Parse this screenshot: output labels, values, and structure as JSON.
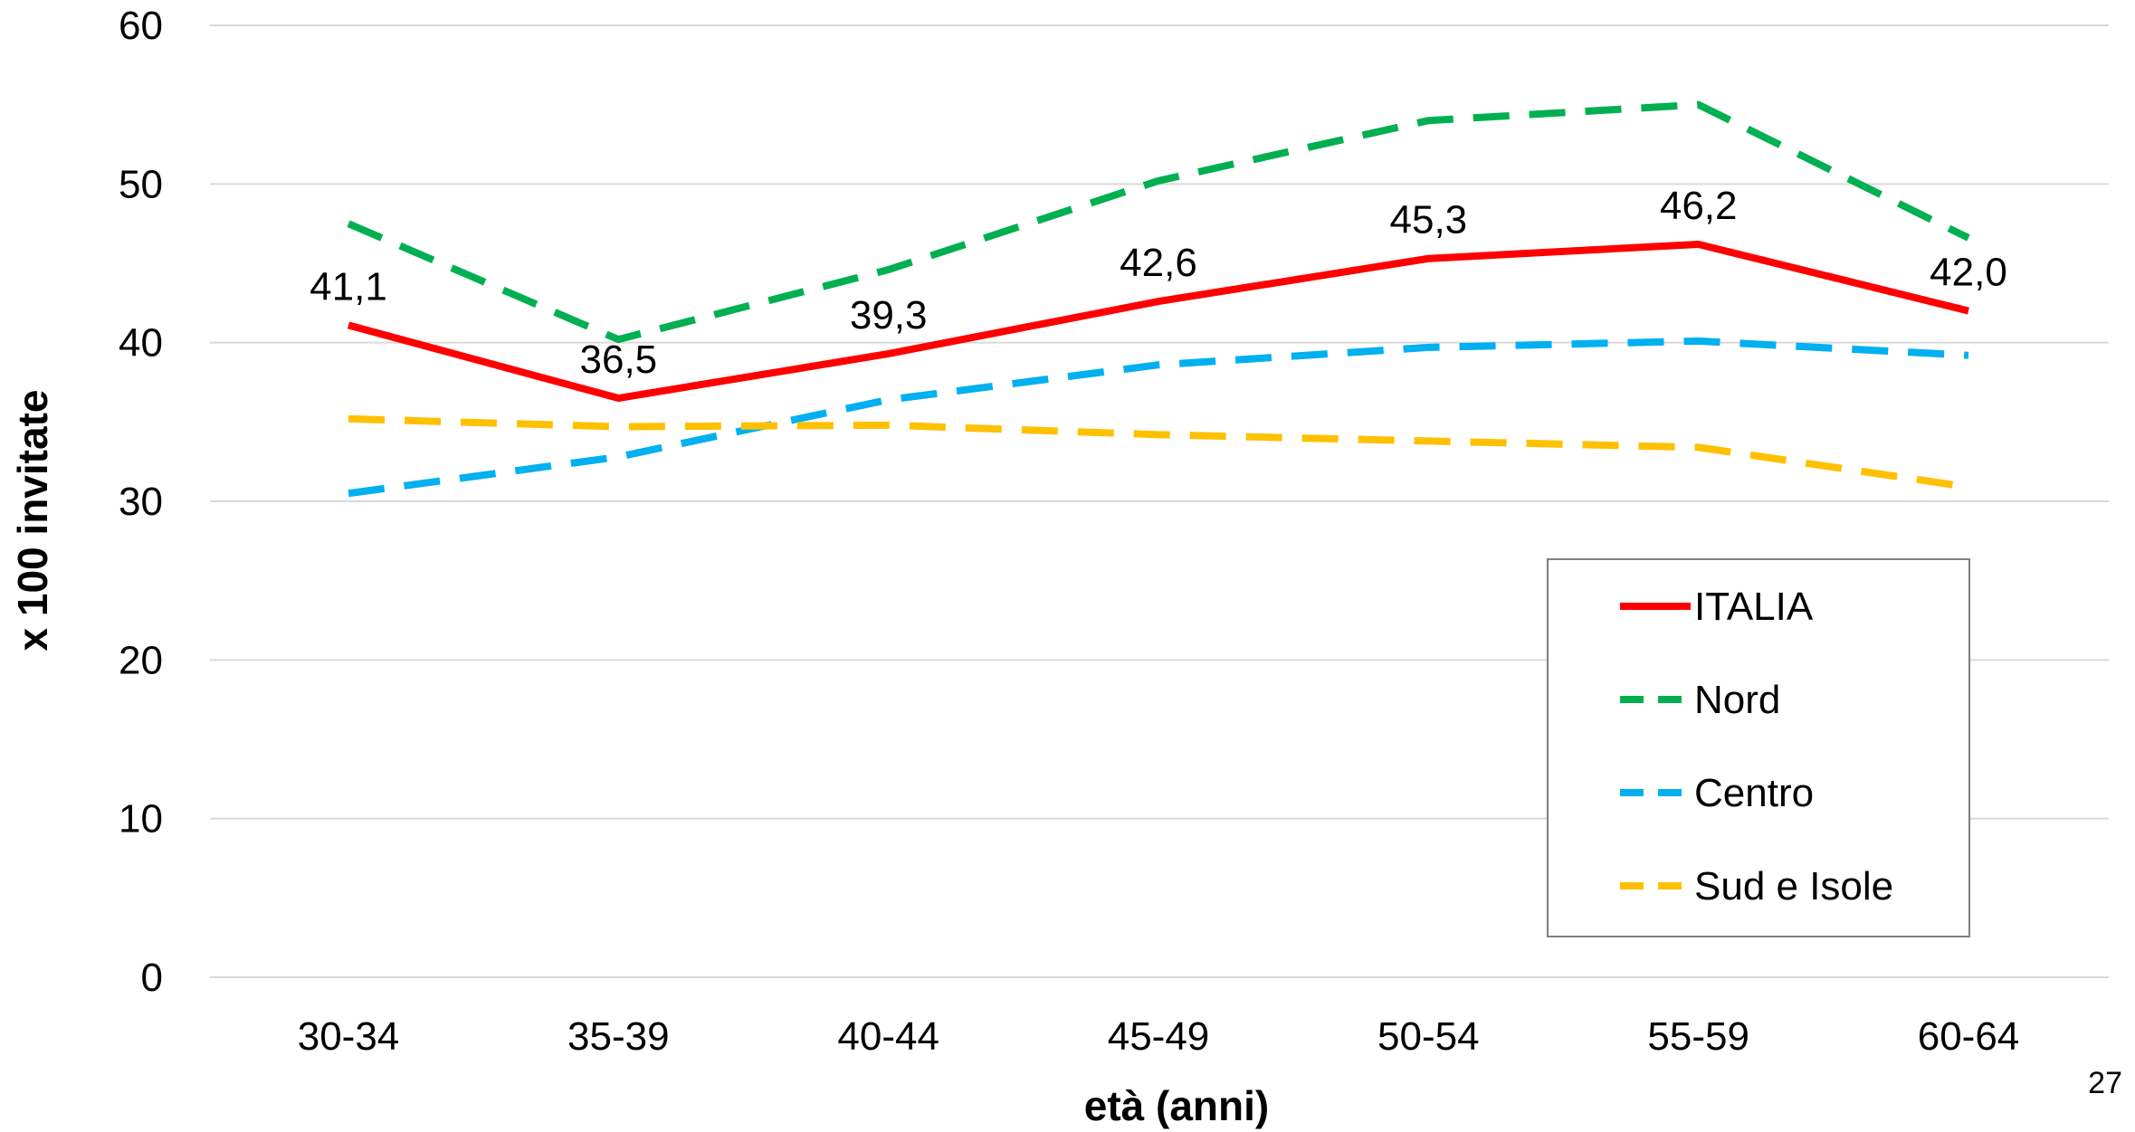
{
  "chart_data": {
    "type": "line",
    "categories": [
      "30-34",
      "35-39",
      "40-44",
      "45-49",
      "50-54",
      "55-59",
      "60-64"
    ],
    "series": [
      {
        "name": "ITALIA",
        "values": [
          41.1,
          36.5,
          39.3,
          42.6,
          45.3,
          46.2,
          42.0
        ],
        "color": "#ff0000",
        "dash": "solid",
        "data_labels": [
          "41,1",
          "36,5",
          "39,3",
          "42,6",
          "45,3",
          "46,2",
          "42,0"
        ]
      },
      {
        "name": "Nord",
        "values": [
          47.5,
          40.2,
          44.6,
          50.2,
          54.0,
          55.0,
          46.6
        ],
        "color": "#00b050",
        "dash": "dashed"
      },
      {
        "name": "Centro",
        "values": [
          30.5,
          32.8,
          36.4,
          38.6,
          39.7,
          40.1,
          39.2
        ],
        "color": "#00b0f0",
        "dash": "dashed"
      },
      {
        "name": "Sud e Isole",
        "values": [
          35.2,
          34.7,
          34.8,
          34.2,
          33.8,
          33.4,
          30.9
        ],
        "color": "#ffc000",
        "dash": "dashed"
      }
    ],
    "xlabel": "età (anni)",
    "ylabel": "x 100 invitate",
    "ylim": [
      0,
      60
    ],
    "yticks": [
      "0",
      "10",
      "20",
      "30",
      "40",
      "50",
      "60"
    ],
    "grid": true,
    "legend_position": "bottom-right"
  },
  "page_number": "27"
}
